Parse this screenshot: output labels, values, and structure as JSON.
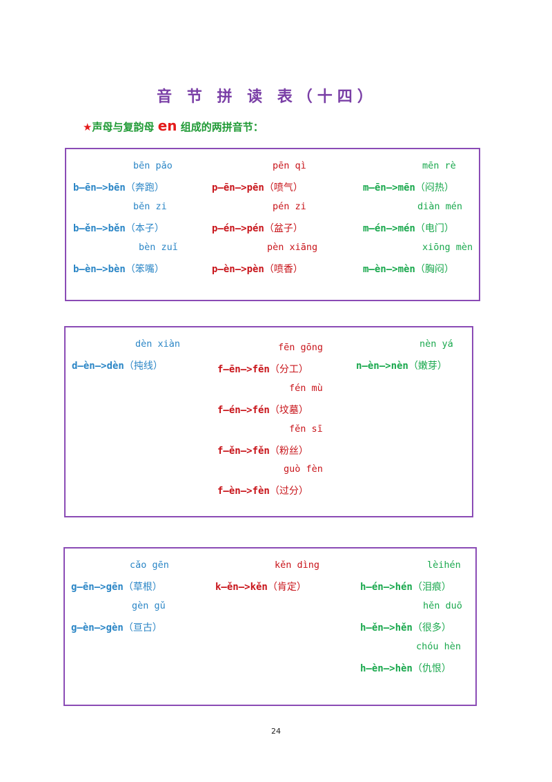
{
  "title": "音 节 拼 读 表（十四）",
  "subtitle": {
    "star": "★",
    "before": "声母与复韵母 ",
    "highlight": "en",
    "after": " 组成的两拼音节："
  },
  "box1": [
    {
      "py": "bēn pǎo",
      "formula": "b—ēn—>bēn",
      "word": "（奔跑）"
    },
    {
      "py": "pēn qì",
      "formula": "p—ēn—>pēn",
      "word": "（喷气）"
    },
    {
      "py": "mēn rè",
      "formula": "m—ēn—>mēn",
      "word": "（闷热）"
    },
    {
      "py": "běn zi",
      "formula": "b—ěn—>běn",
      "word": "（本子）"
    },
    {
      "py": "pén zi",
      "formula": "p—én—>pén",
      "word": "（盆子）"
    },
    {
      "py": "diàn mén",
      "formula": "m—én—>mén",
      "word": "（电门）"
    },
    {
      "py": "bèn zuǐ",
      "formula": "b—èn—>bèn",
      "word": "（笨嘴）"
    },
    {
      "py": "pèn xiāng",
      "formula": "p—èn—>pèn",
      "word": "（喷香）"
    },
    {
      "py": "xiōng mèn",
      "formula": "m—èn—>mèn",
      "word": "（胸闷）"
    }
  ],
  "box2": [
    {
      "py": "dèn xiàn",
      "formula": "d—èn—>dèn",
      "word": "（扽线）"
    },
    {
      "py": "fēn gōng",
      "formula": "f—ēn—>fēn",
      "word": "（分工）"
    },
    {
      "py": "nèn yá",
      "formula": "n—èn—>nèn",
      "word": "（嫩芽）"
    },
    {
      "py": "fén mù",
      "formula": "f—én—>fén",
      "word": "（坟墓）"
    },
    {
      "py": "fěn sī",
      "formula": "f—ěn—>fěn",
      "word": "（粉丝）"
    },
    {
      "py": "guò fèn",
      "formula": "f—èn—>fèn",
      "word": "（过分）"
    }
  ],
  "box3": [
    {
      "py": "cǎo gēn",
      "formula": "g—ēn—>gēn",
      "word": "（草根）"
    },
    {
      "py": "kěn dìng",
      "formula": "k—ěn—>kěn",
      "word": "（肯定）"
    },
    {
      "py": "lèihén",
      "formula": "h—én—>hén",
      "word": "（泪痕）"
    },
    {
      "py": "gèn gǔ",
      "formula": "g—èn—>gèn",
      "word": "（亘古）"
    },
    {
      "py": "hěn duō",
      "formula": "h—ěn—>hěn",
      "word": "（很多）"
    },
    {
      "py": "chóu hèn",
      "formula": "h—èn—>hèn",
      "word": "（仇恨）"
    }
  ],
  "page_number": "24",
  "colors": {
    "blue": "#2b86c6",
    "red": "#c8141a",
    "green": "#19a84d",
    "purple": "#8a4bb5"
  }
}
